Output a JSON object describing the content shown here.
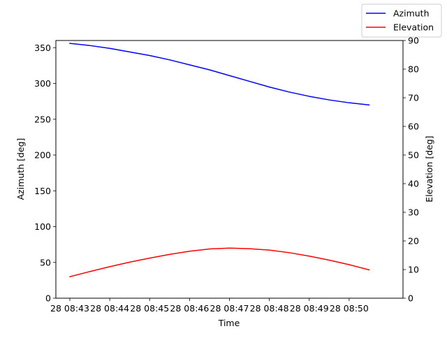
{
  "chart_data": {
    "type": "line",
    "xlabel": "Time",
    "ylabel_left": "Azimuth [deg]",
    "ylabel_right": "Elevation [deg]",
    "x_tick_labels": [
      "28 08:43",
      "28 08:44",
      "28 08:45",
      "28 08:46",
      "28 08:47",
      "28 08:48",
      "28 08:49",
      "28 08:50"
    ],
    "y_left_ticks": [
      0,
      50,
      100,
      150,
      200,
      250,
      300,
      350
    ],
    "y_right_ticks": [
      0,
      10,
      20,
      30,
      40,
      50,
      60,
      70,
      80,
      90
    ],
    "ylim_left": [
      0,
      360
    ],
    "ylim_right": [
      0,
      90
    ],
    "grid": false,
    "legend_position": "top-right, outside plot",
    "series": [
      {
        "name": "Azimuth",
        "axis": "left",
        "color": "#0000ff",
        "x": [
          "08:43:00",
          "08:43:30",
          "08:44:00",
          "08:44:30",
          "08:45:00",
          "08:45:30",
          "08:46:00",
          "08:46:30",
          "08:47:00",
          "08:47:30",
          "08:48:00",
          "08:48:30",
          "08:49:00",
          "08:49:30",
          "08:50:00",
          "08:50:30"
        ],
        "y": [
          356,
          353,
          349,
          344,
          339,
          333,
          326,
          319,
          311,
          303,
          295,
          288,
          282,
          277,
          273,
          270
        ]
      },
      {
        "name": "Elevation",
        "axis": "right",
        "color": "#ff0000",
        "x": [
          "08:43:00",
          "08:43:30",
          "08:44:00",
          "08:44:30",
          "08:45:00",
          "08:45:30",
          "08:46:00",
          "08:46:30",
          "08:47:00",
          "08:47:30",
          "08:48:00",
          "08:48:30",
          "08:49:00",
          "08:49:30",
          "08:50:00",
          "08:50:30"
        ],
        "y": [
          7.5,
          9.3,
          11.0,
          12.6,
          14.0,
          15.3,
          16.4,
          17.2,
          17.5,
          17.3,
          16.8,
          15.9,
          14.7,
          13.3,
          11.7,
          9.9
        ]
      }
    ]
  }
}
